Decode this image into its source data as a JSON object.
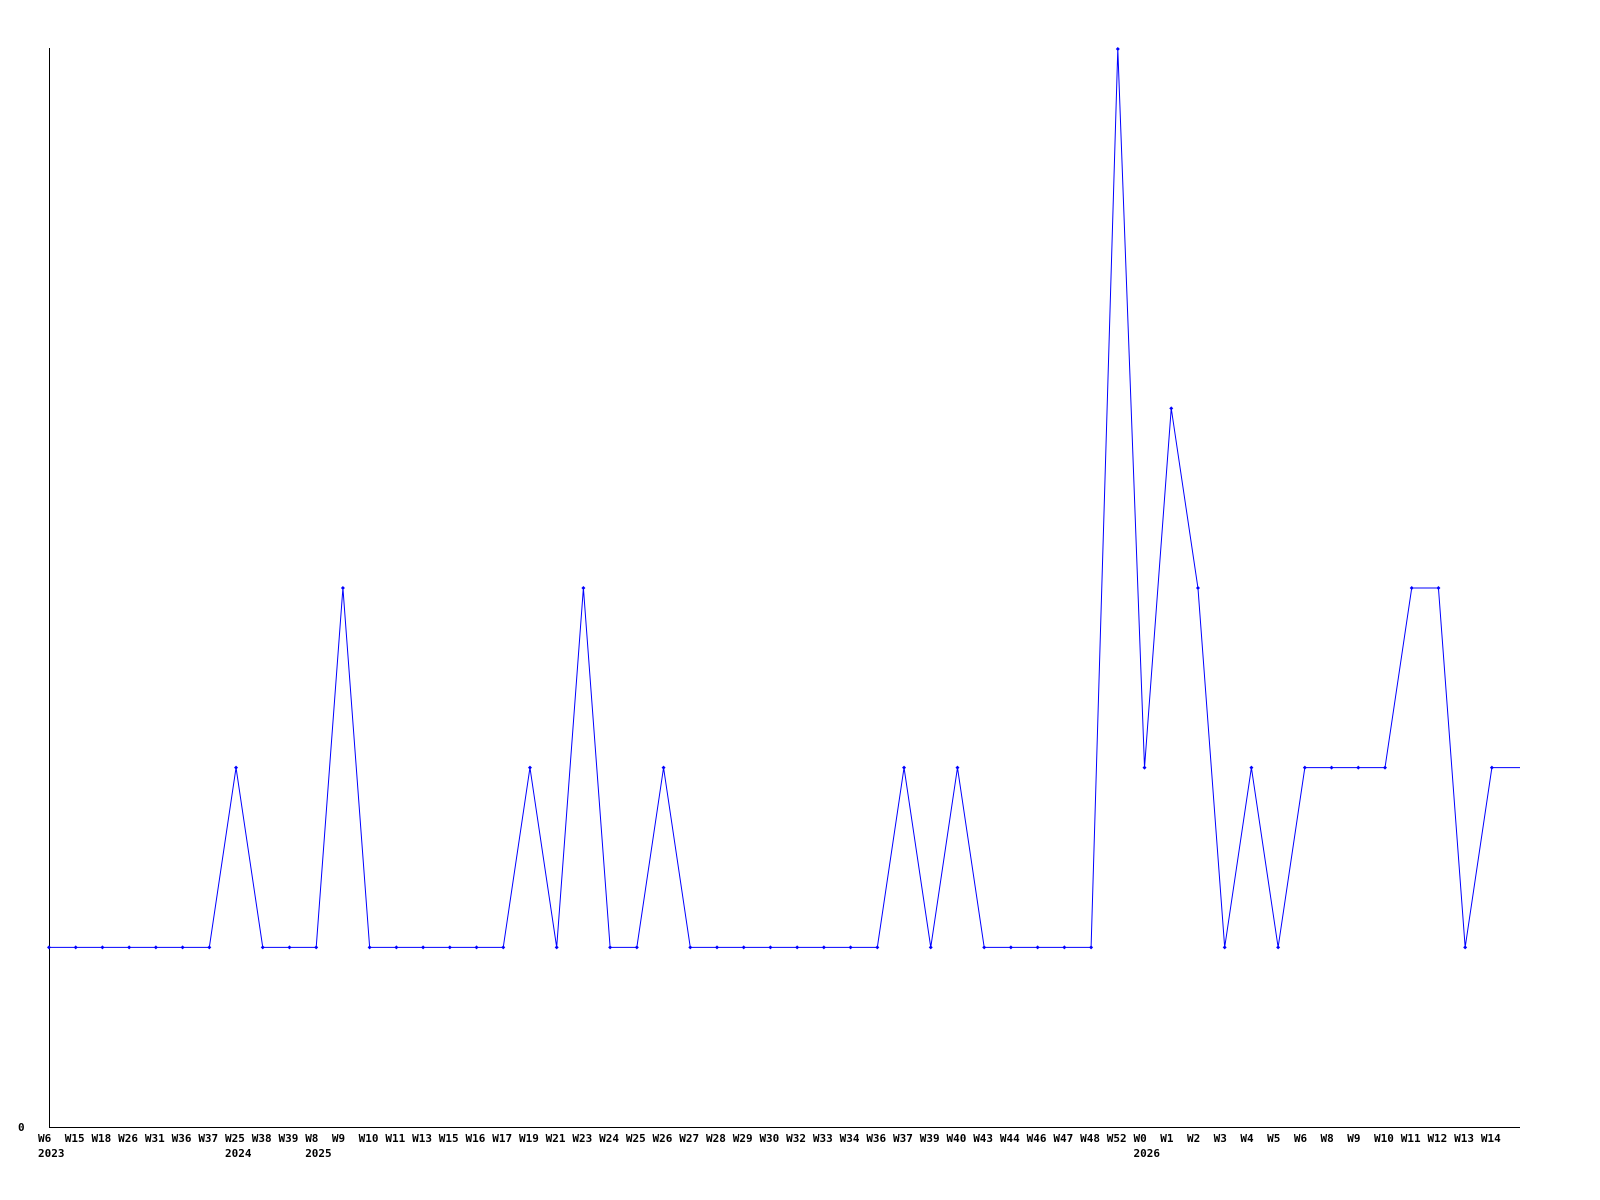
{
  "chart_data": {
    "type": "line",
    "title": "",
    "xlabel": "",
    "ylabel": "",
    "ylim": [
      0,
      6
    ],
    "y_tick_labels": [
      "0"
    ],
    "grid": false,
    "line_color": "#0000ff",
    "categories": [
      "W6",
      "W15",
      "W18",
      "W26",
      "W31",
      "W36",
      "W37",
      "W25",
      "W38",
      "W39",
      "W8",
      "W9",
      "W10",
      "W11",
      "W13",
      "W15",
      "W16",
      "W17",
      "W19",
      "W21",
      "W23",
      "W24",
      "W25",
      "W26",
      "W27",
      "W28",
      "W29",
      "W30",
      "W32",
      "W33",
      "W34",
      "W36",
      "W37",
      "W39",
      "W40",
      "W43",
      "W44",
      "W46",
      "W47",
      "W48",
      "W52",
      "W0",
      "W1",
      "W2",
      "W3",
      "W4",
      "W5",
      "W6",
      "W8",
      "W9",
      "W10",
      "W11",
      "W12",
      "W13",
      "W14"
    ],
    "year_labels": {
      "0": "2023",
      "7": "2024",
      "10": "2025",
      "41": "2026"
    },
    "values": [
      1,
      1,
      1,
      1,
      1,
      1,
      1,
      2,
      1,
      1,
      1,
      3,
      1,
      1,
      1,
      1,
      1,
      1,
      2,
      1,
      3,
      1,
      1,
      2,
      1,
      1,
      1,
      1,
      1,
      1,
      1,
      1,
      2,
      1,
      2,
      1,
      1,
      1,
      1,
      1,
      6,
      2,
      4,
      3,
      1,
      2,
      1,
      2,
      2,
      2,
      2,
      3,
      3,
      1,
      2
    ]
  }
}
